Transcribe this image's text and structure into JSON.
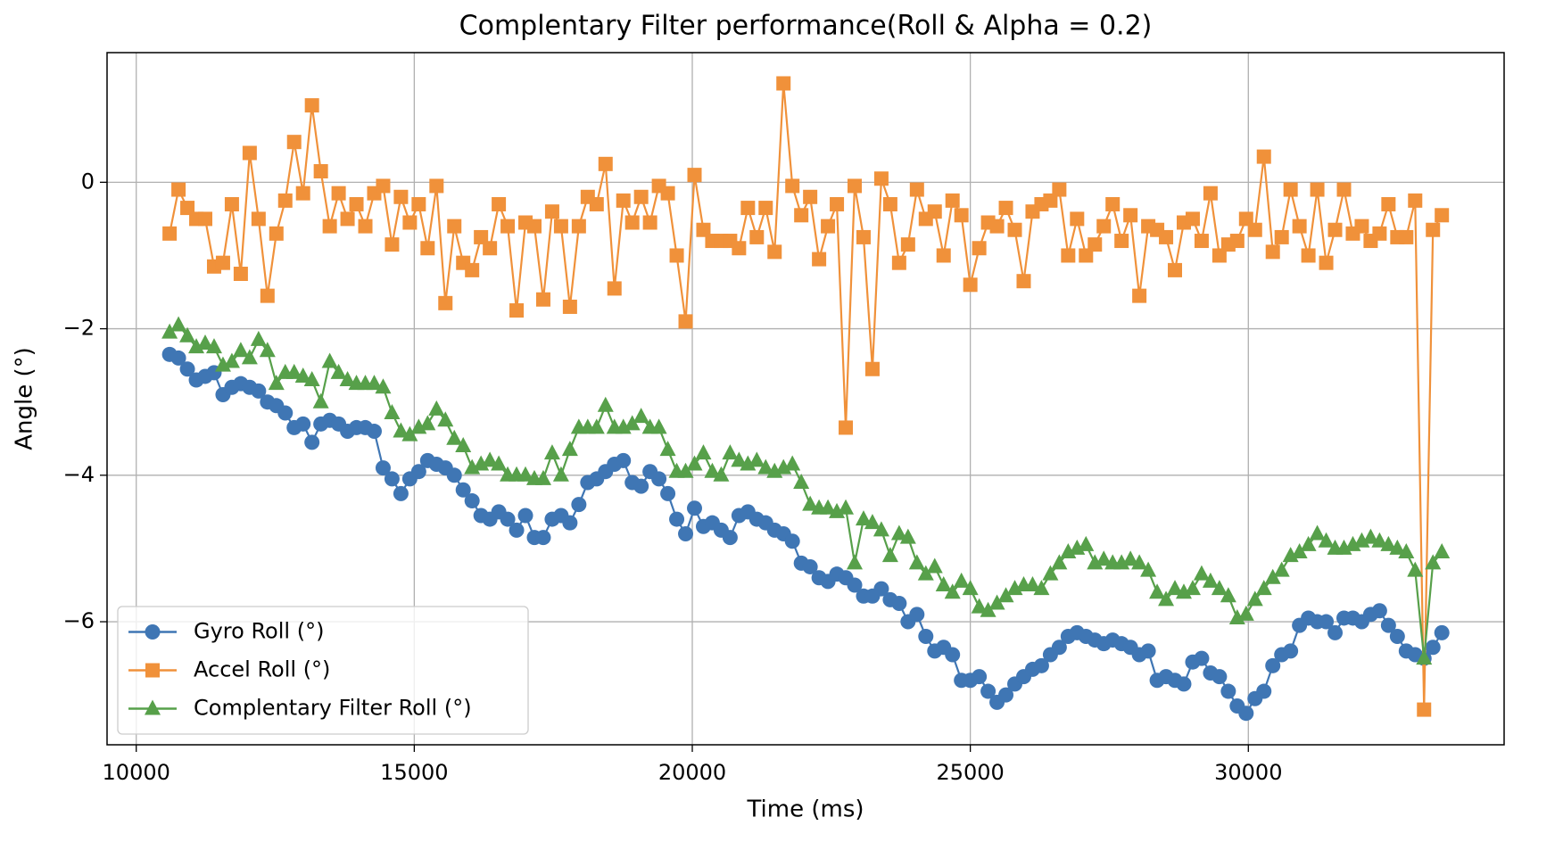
{
  "chart_data": {
    "type": "line",
    "title": "Complentary Filter performance(Roll & Alpha = 0.2)",
    "xlabel": "Time (ms)",
    "ylabel": "Angle (°)",
    "xlim": [
      9475,
      34600
    ],
    "ylim": [
      -7.68,
      1.77
    ],
    "xticks": [
      10000,
      15000,
      20000,
      25000,
      30000
    ],
    "yticks": [
      {
        "value": -6,
        "label": "−6"
      },
      {
        "value": -4,
        "label": "−4"
      },
      {
        "value": -2,
        "label": "−2"
      },
      0
    ],
    "grid": true,
    "legend": "lower left",
    "x": [
      10600,
      10760,
      10920,
      11080,
      11240,
      11400,
      11560,
      11720,
      11880,
      12040,
      12200,
      12360,
      12520,
      12680,
      12840,
      13000,
      13160,
      13320,
      13480,
      13640,
      13800,
      13960,
      14120,
      14280,
      14440,
      14600,
      14760,
      14920,
      15080,
      15240,
      15400,
      15560,
      15720,
      15880,
      16040,
      16200,
      16360,
      16520,
      16680,
      16840,
      17000,
      17160,
      17320,
      17480,
      17640,
      17800,
      17960,
      18120,
      18280,
      18440,
      18600,
      18760,
      18920,
      19080,
      19240,
      19400,
      19560,
      19720,
      19880,
      20040,
      20200,
      20360,
      20520,
      20680,
      20840,
      21000,
      21160,
      21320,
      21480,
      21640,
      21800,
      21960,
      22120,
      22280,
      22440,
      22600,
      22760,
      22920,
      23080,
      23240,
      23400,
      23560,
      23720,
      23880,
      24040,
      24200,
      24360,
      24520,
      24680,
      24840,
      25000,
      25160,
      25320,
      25480,
      25640,
      25800,
      25960,
      26120,
      26280,
      26440,
      26600,
      26760,
      26920,
      27080,
      27240,
      27400,
      27560,
      27720,
      27880,
      28040,
      28200,
      28360,
      28520,
      28680,
      28840,
      29000,
      29160,
      29320,
      29480,
      29640,
      29800,
      29960,
      30120,
      30280,
      30440,
      30600,
      30760,
      30920,
      31080,
      31240,
      31400,
      31560,
      31720,
      31880,
      32040,
      32200,
      32360,
      32520,
      32680,
      32840,
      33000,
      33160,
      33320,
      33480
    ],
    "series": [
      {
        "name": "Gyro Roll (°)",
        "color": "#3f76b4",
        "marker": "circle",
        "values": [
          -2.35,
          -2.4,
          -2.55,
          -2.7,
          -2.65,
          -2.6,
          -2.9,
          -2.8,
          -2.75,
          -2.8,
          -2.85,
          -3.0,
          -3.05,
          -3.15,
          -3.35,
          -3.3,
          -3.55,
          -3.3,
          -3.25,
          -3.3,
          -3.4,
          -3.35,
          -3.35,
          -3.4,
          -3.9,
          -4.05,
          -4.25,
          -4.05,
          -3.95,
          -3.8,
          -3.85,
          -3.9,
          -4.0,
          -4.2,
          -4.35,
          -4.55,
          -4.6,
          -4.5,
          -4.6,
          -4.75,
          -4.55,
          -4.85,
          -4.85,
          -4.6,
          -4.55,
          -4.65,
          -4.4,
          -4.1,
          -4.05,
          -3.95,
          -3.85,
          -3.8,
          -4.1,
          -4.15,
          -3.95,
          -4.05,
          -4.25,
          -4.6,
          -4.8,
          -4.45,
          -4.7,
          -4.65,
          -4.75,
          -4.85,
          -4.55,
          -4.5,
          -4.6,
          -4.65,
          -4.75,
          -4.8,
          -4.9,
          -5.2,
          -5.25,
          -5.4,
          -5.45,
          -5.35,
          -5.4,
          -5.5,
          -5.65,
          -5.65,
          -5.55,
          -5.7,
          -5.75,
          -6.0,
          -5.9,
          -6.2,
          -6.4,
          -6.35,
          -6.45,
          -6.8,
          -6.8,
          -6.75,
          -6.95,
          -7.1,
          -7.0,
          -6.85,
          -6.75,
          -6.65,
          -6.6,
          -6.45,
          -6.35,
          -6.2,
          -6.15,
          -6.2,
          -6.25,
          -6.3,
          -6.25,
          -6.3,
          -6.35,
          -6.45,
          -6.4,
          -6.8,
          -6.75,
          -6.8,
          -6.85,
          -6.55,
          -6.5,
          -6.7,
          -6.75,
          -6.95,
          -7.15,
          -7.25,
          -7.05,
          -6.95,
          -6.6,
          -6.45,
          -6.4,
          -6.05,
          -5.95,
          -6.0,
          -6.0,
          -6.15,
          -5.95,
          -5.95,
          -6.0,
          -5.9,
          -5.85,
          -6.05,
          -6.2,
          -6.4,
          -6.45,
          -6.5,
          -6.35,
          -6.15
        ]
      },
      {
        "name": "Accel Roll (°)",
        "color": "#f0913a",
        "marker": "square",
        "values": [
          -0.7,
          -0.1,
          -0.35,
          -0.5,
          -0.5,
          -1.15,
          -1.1,
          -0.3,
          -1.25,
          0.4,
          -0.5,
          -1.55,
          -0.7,
          -0.25,
          0.55,
          -0.15,
          1.05,
          0.15,
          -0.6,
          -0.15,
          -0.5,
          -0.3,
          -0.6,
          -0.15,
          -0.05,
          -0.85,
          -0.2,
          -0.55,
          -0.3,
          -0.9,
          -0.05,
          -1.65,
          -0.6,
          -1.1,
          -1.2,
          -0.75,
          -0.9,
          -0.3,
          -0.6,
          -1.75,
          -0.55,
          -0.6,
          -1.6,
          -0.4,
          -0.6,
          -1.7,
          -0.6,
          -0.2,
          -0.3,
          0.25,
          -1.45,
          -0.25,
          -0.55,
          -0.2,
          -0.55,
          -0.05,
          -0.15,
          -1.0,
          -1.9,
          0.1,
          -0.65,
          -0.8,
          -0.8,
          -0.8,
          -0.9,
          -0.35,
          -0.75,
          -0.35,
          -0.95,
          1.35,
          -0.05,
          -0.45,
          -0.2,
          -1.05,
          -0.6,
          -0.3,
          -3.35,
          -0.05,
          -0.75,
          -2.55,
          0.05,
          -0.3,
          -1.1,
          -0.85,
          -0.1,
          -0.5,
          -0.4,
          -1.0,
          -0.25,
          -0.45,
          -1.4,
          -0.9,
          -0.55,
          -0.6,
          -0.35,
          -0.65,
          -1.35,
          -0.4,
          -0.3,
          -0.25,
          -0.1,
          -1.0,
          -0.5,
          -1.0,
          -0.85,
          -0.6,
          -0.3,
          -0.8,
          -0.45,
          -1.55,
          -0.6,
          -0.65,
          -0.75,
          -1.2,
          -0.55,
          -0.5,
          -0.8,
          -0.15,
          -1.0,
          -0.85,
          -0.8,
          -0.5,
          -0.65,
          0.35,
          -0.95,
          -0.75,
          -0.1,
          -0.6,
          -1.0,
          -0.1,
          -1.1,
          -0.65,
          -0.1,
          -0.7,
          -0.6,
          -0.8,
          -0.7,
          -0.3,
          -0.75,
          -0.75,
          -0.25,
          -7.2,
          -0.65,
          -0.45
        ]
      },
      {
        "name": "Complentary Filter Roll (°)",
        "color": "#57a04a",
        "marker": "triangle",
        "values": [
          -2.05,
          -1.95,
          -2.1,
          -2.25,
          -2.2,
          -2.25,
          -2.5,
          -2.45,
          -2.3,
          -2.4,
          -2.15,
          -2.3,
          -2.75,
          -2.6,
          -2.6,
          -2.65,
          -2.7,
          -3.0,
          -2.45,
          -2.6,
          -2.7,
          -2.75,
          -2.75,
          -2.75,
          -2.8,
          -3.15,
          -3.4,
          -3.45,
          -3.35,
          -3.3,
          -3.1,
          -3.25,
          -3.5,
          -3.6,
          -3.9,
          -3.85,
          -3.8,
          -3.85,
          -4.0,
          -4.0,
          -4.0,
          -4.05,
          -4.05,
          -3.7,
          -4.0,
          -3.65,
          -3.35,
          -3.35,
          -3.35,
          -3.05,
          -3.35,
          -3.35,
          -3.3,
          -3.2,
          -3.35,
          -3.35,
          -3.65,
          -3.95,
          -3.95,
          -3.85,
          -3.7,
          -3.95,
          -4.0,
          -3.7,
          -3.8,
          -3.85,
          -3.8,
          -3.9,
          -3.95,
          -3.9,
          -3.85,
          -4.1,
          -4.4,
          -4.45,
          -4.45,
          -4.5,
          -4.45,
          -5.2,
          -4.6,
          -4.65,
          -4.75,
          -5.1,
          -4.8,
          -4.85,
          -5.2,
          -5.35,
          -5.25,
          -5.5,
          -5.6,
          -5.45,
          -5.55,
          -5.8,
          -5.85,
          -5.75,
          -5.65,
          -5.55,
          -5.5,
          -5.5,
          -5.55,
          -5.35,
          -5.2,
          -5.05,
          -5.0,
          -4.95,
          -5.2,
          -5.15,
          -5.2,
          -5.2,
          -5.15,
          -5.2,
          -5.3,
          -5.6,
          -5.7,
          -5.55,
          -5.6,
          -5.55,
          -5.35,
          -5.45,
          -5.55,
          -5.65,
          -5.95,
          -5.9,
          -5.7,
          -5.55,
          -5.4,
          -5.3,
          -5.1,
          -5.05,
          -4.95,
          -4.8,
          -4.9,
          -5.0,
          -5.0,
          -4.95,
          -4.9,
          -4.85,
          -4.9,
          -4.95,
          -5.0,
          -5.05,
          -5.3,
          -6.5,
          -5.2,
          -5.05
        ]
      }
    ]
  }
}
